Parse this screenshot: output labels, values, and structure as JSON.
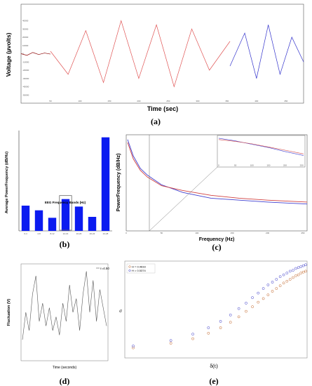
{
  "captions": {
    "a": "(a)",
    "b": "(b)",
    "c": "(c)",
    "d": "(d)",
    "e": "(e)"
  },
  "chart_data": [
    {
      "panel": "a",
      "type": "line",
      "xlabel": "Time (sec)",
      "ylabel": "Voltage (µvolts)",
      "xlim": [
        0,
        480
      ],
      "ylim": [
        -60000,
        60000
      ],
      "x_ticks": [
        "50",
        "100",
        "150",
        "200",
        "250",
        "300",
        "350",
        "400",
        "450"
      ],
      "y_ticks": [
        "40000",
        "30000",
        "20000",
        "10000",
        "0",
        "-10000",
        "-20000",
        "-30000",
        "-40000",
        "-50000"
      ],
      "series": [
        {
          "color": "#8b0000",
          "x": [
            0,
            10,
            20,
            30,
            40,
            50
          ],
          "y": [
            0,
            -2000,
            1500,
            -1000,
            800,
            -500
          ]
        },
        {
          "color": "#e05555",
          "x": [
            50,
            80,
            110,
            140,
            170,
            200,
            230,
            260,
            290,
            320,
            355
          ],
          "y": [
            3000,
            -25000,
            28000,
            -35000,
            40000,
            -30000,
            35000,
            -40000,
            30000,
            -20000,
            15000
          ]
        },
        {
          "color": "#3333cc",
          "x": [
            355,
            380,
            400,
            420,
            440,
            460,
            480
          ],
          "y": [
            -15000,
            25000,
            -30000,
            35000,
            -25000,
            20000,
            -10000
          ]
        }
      ]
    },
    {
      "panel": "b",
      "type": "bar",
      "xlabel": "EEG Frequency Bands (Hz)",
      "ylabel": "Average PowerFrequency (dB/Hz)",
      "categories": [
        "0-4",
        "4-8",
        "8-12",
        "12-16",
        "16-20",
        "20-24",
        "24-28"
      ],
      "values": [
        0.27,
        0.22,
        0.14,
        0.34,
        0.26,
        0.15,
        1.0
      ],
      "ylim": [
        0,
        1.05
      ],
      "highlighted_category": "12-16",
      "bar_color": "#0b1bf0"
    },
    {
      "panel": "c",
      "type": "line",
      "xlabel": "Frequency (Hz)",
      "ylabel": "PowerFrequency (dB/Hz)",
      "xlim": [
        0,
        256
      ],
      "ylim": [
        -100,
        0
      ],
      "x_ticks": [
        "0",
        "50",
        "100",
        "150",
        "200",
        "250"
      ],
      "series": [
        {
          "color": "#4040d0",
          "x": [
            2,
            10,
            20,
            30,
            50,
            80,
            120,
            160,
            200,
            256
          ],
          "y": [
            -5,
            -22,
            -35,
            -42,
            -52,
            -60,
            -66,
            -68,
            -70,
            -72
          ]
        },
        {
          "color": "#d04040",
          "x": [
            2,
            10,
            20,
            30,
            50,
            80,
            120,
            160,
            200,
            256
          ],
          "y": [
            -8,
            -25,
            -37,
            -44,
            -53,
            -58,
            -63,
            -66,
            -68,
            -70
          ]
        }
      ],
      "inset": {
        "xlim": [
          0,
          256
        ],
        "x_ticks": [
          "0",
          "50",
          "100",
          "150",
          "200",
          "250"
        ],
        "series": [
          {
            "color": "#4040d0",
            "x": [
              0,
              50,
              100,
              150,
              200,
              256
            ],
            "y": [
              0.95,
              0.85,
              0.72,
              0.6,
              0.45,
              0.3
            ]
          },
          {
            "color": "#d04040",
            "x": [
              0,
              50,
              100,
              150,
              200,
              256
            ],
            "y": [
              0.9,
              0.83,
              0.74,
              0.62,
              0.5,
              0.36
            ]
          }
        ]
      }
    },
    {
      "panel": "d",
      "type": "line",
      "xlabel": "Time (seconds)",
      "ylabel": "Fluctuation (V)",
      "legend": "r=4.50",
      "legend_position": "top-right",
      "series": [
        {
          "color": "#555555",
          "x": [
            0,
            4,
            8,
            12,
            16,
            20,
            24,
            28,
            32,
            36,
            40,
            44,
            48,
            52,
            56,
            60,
            64,
            68,
            72,
            76,
            80,
            84,
            88,
            92,
            96,
            100
          ],
          "y": [
            0.2,
            0.5,
            0.3,
            0.7,
            0.9,
            0.4,
            0.6,
            0.35,
            0.55,
            0.3,
            0.45,
            0.25,
            0.6,
            0.4,
            0.8,
            0.5,
            0.65,
            0.3,
            0.7,
            0.95,
            0.5,
            0.85,
            0.4,
            0.75,
            0.55,
            0.35
          ]
        }
      ]
    },
    {
      "panel": "e",
      "type": "scatter",
      "xlabel": "δ(t)",
      "ylabel": "σ",
      "x_scale": "log",
      "y_scale": "log",
      "legend_position": "top-left",
      "series": [
        {
          "name": "H = 0.4633",
          "color": "#c06020",
          "x": [
            1,
            2,
            3,
            4,
            5,
            6,
            7,
            8,
            9,
            10,
            11,
            12,
            13,
            14,
            15,
            16,
            17,
            18,
            19,
            20,
            21,
            22,
            23,
            24
          ],
          "y": [
            0.08,
            0.13,
            0.18,
            0.24,
            0.3,
            0.36,
            0.42,
            0.48,
            0.53,
            0.58,
            0.62,
            0.66,
            0.7,
            0.73,
            0.76,
            0.79,
            0.81,
            0.83,
            0.85,
            0.87,
            0.88,
            0.9,
            0.91,
            0.92
          ]
        },
        {
          "name": "H = 0.5374",
          "color": "#3838c8",
          "x": [
            1,
            2,
            3,
            4,
            5,
            6,
            7,
            8,
            9,
            10,
            11,
            12,
            13,
            14,
            15,
            16,
            17,
            18,
            19,
            20,
            21,
            22,
            23,
            24
          ],
          "y": [
            0.1,
            0.16,
            0.23,
            0.3,
            0.37,
            0.44,
            0.51,
            0.57,
            0.63,
            0.68,
            0.73,
            0.77,
            0.8,
            0.83,
            0.86,
            0.88,
            0.9,
            0.92,
            0.93,
            0.95,
            0.96,
            0.97,
            0.98,
            0.99
          ]
        }
      ]
    }
  ]
}
